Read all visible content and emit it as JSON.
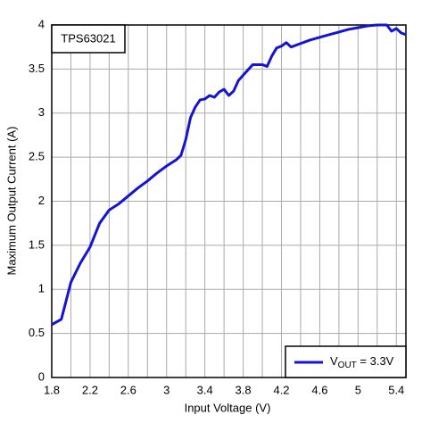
{
  "chart_data": {
    "type": "line",
    "annotation": "TPS63021",
    "x_label": "Input Voltage (V)",
    "y_label": "Maximum Output Current (A)",
    "xlim": [
      1.8,
      5.5
    ],
    "ylim": [
      0,
      4
    ],
    "xticks": [
      1.8,
      2.2,
      2.6,
      3,
      3.4,
      3.8,
      4.2,
      4.6,
      5,
      5.4
    ],
    "x_minor_grid": [
      2.0,
      2.4,
      2.8,
      3.2,
      3.6,
      4.0,
      4.4,
      4.8,
      5.2
    ],
    "yticks": [
      0,
      0.5,
      1,
      1.5,
      2,
      2.5,
      3,
      3.5,
      4
    ],
    "grid": true,
    "legend_position": "lower right",
    "legend_label": {
      "main": "V",
      "sub": "OUT",
      "rest": " = 3.3V"
    },
    "x": [
      1.8,
      1.9,
      2.0,
      2.1,
      2.2,
      2.3,
      2.4,
      2.5,
      2.6,
      2.7,
      2.8,
      2.9,
      3.0,
      3.1,
      3.15,
      3.2,
      3.25,
      3.3,
      3.35,
      3.4,
      3.45,
      3.5,
      3.55,
      3.6,
      3.65,
      3.7,
      3.75,
      3.8,
      3.9,
      4.0,
      4.05,
      4.1,
      4.15,
      4.2,
      4.25,
      4.3,
      4.4,
      4.5,
      4.6,
      4.7,
      4.8,
      4.9,
      5.0,
      5.1,
      5.2,
      5.3,
      5.35,
      5.4,
      5.45,
      5.5
    ],
    "series": [
      {
        "color": "#1414d2",
        "values": [
          0.6,
          0.66,
          1.08,
          1.3,
          1.48,
          1.75,
          1.9,
          1.97,
          2.06,
          2.15,
          2.23,
          2.32,
          2.4,
          2.47,
          2.52,
          2.7,
          2.95,
          3.07,
          3.15,
          3.16,
          3.2,
          3.18,
          3.24,
          3.27,
          3.2,
          3.25,
          3.37,
          3.43,
          3.55,
          3.55,
          3.53,
          3.65,
          3.74,
          3.76,
          3.8,
          3.75,
          3.79,
          3.83,
          3.86,
          3.89,
          3.92,
          3.95,
          3.97,
          3.99,
          4.0,
          4.0,
          3.93,
          3.96,
          3.91,
          3.89
        ]
      }
    ]
  }
}
